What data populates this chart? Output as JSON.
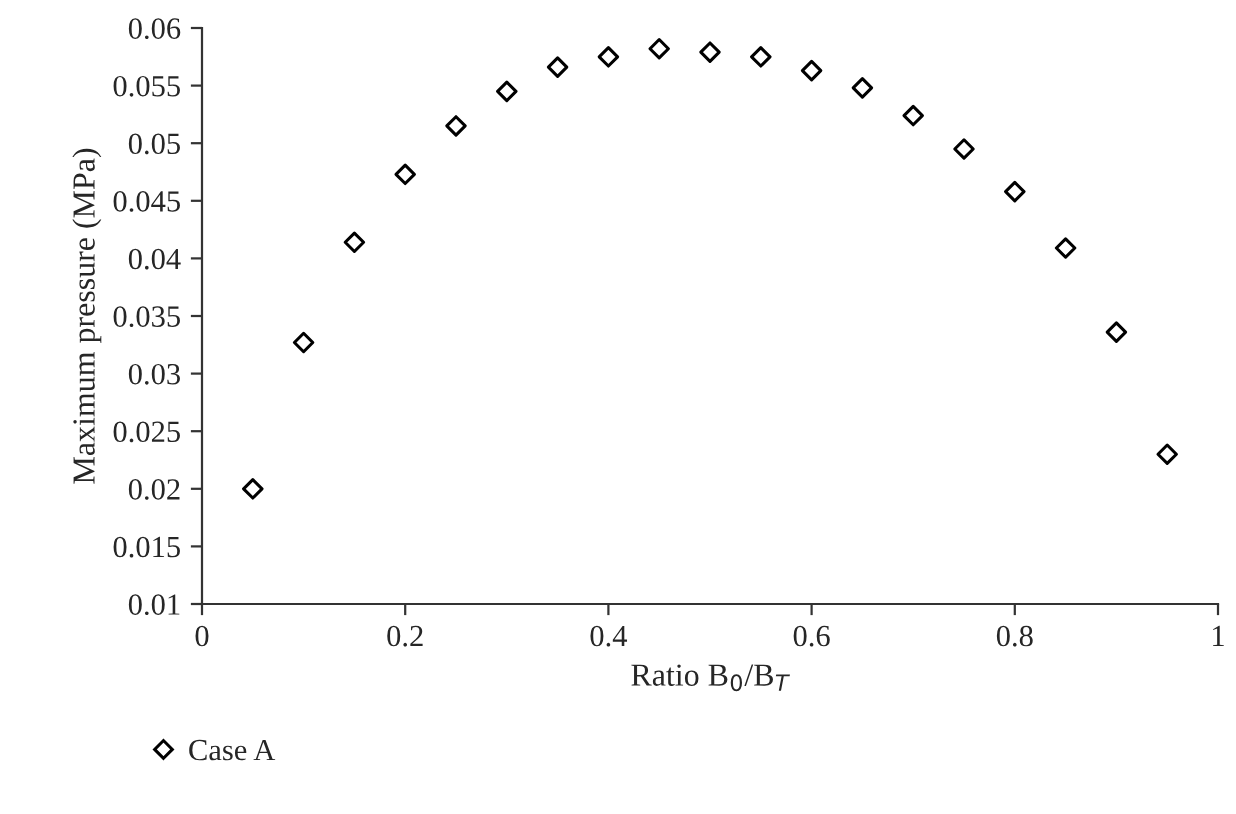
{
  "chart_data": {
    "type": "scatter",
    "xlabel": "Ratio B$_{0}$/B$_{T}$",
    "ylabel": "Maximum pressure (MPa)",
    "series": [
      {
        "name": "Case A",
        "color": "#000000",
        "marker": "diamond",
        "x": [
          0.05,
          0.1,
          0.15,
          0.2,
          0.25,
          0.3,
          0.35,
          0.4,
          0.45,
          0.5,
          0.55,
          0.6,
          0.65,
          0.7,
          0.75,
          0.8,
          0.85,
          0.9,
          0.95
        ],
        "values": [
          0.02,
          0.0327,
          0.0414,
          0.0473,
          0.0515,
          0.0545,
          0.0566,
          0.0575,
          0.0582,
          0.0579,
          0.0575,
          0.0563,
          0.0548,
          0.0524,
          0.0495,
          0.0458,
          0.0409,
          0.0336,
          0.023
        ]
      }
    ],
    "xlim": [
      0,
      1
    ],
    "xticks": [
      0,
      0.2,
      0.4,
      0.6,
      0.8,
      1
    ],
    "ylim": [
      0.01,
      0.06
    ],
    "yticks": [
      0.01,
      0.015,
      0.02,
      0.025,
      0.03,
      0.035,
      0.04,
      0.045,
      0.05,
      0.055,
      0.06
    ],
    "grid": false,
    "legend": "bottom left"
  }
}
